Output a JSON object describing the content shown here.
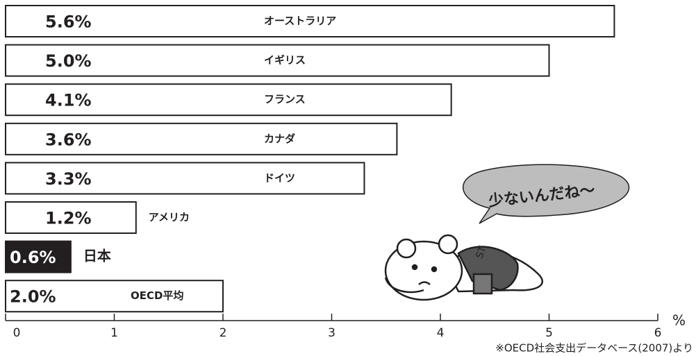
{
  "chart_data": {
    "type": "bar",
    "orientation": "horizontal",
    "categories": [
      "オーストラリア",
      "イギリス",
      "フランス",
      "カナダ",
      "ドイツ",
      "アメリカ",
      "日本",
      "OECD平均"
    ],
    "values": [
      5.6,
      5.0,
      4.1,
      3.6,
      3.3,
      1.2,
      0.6,
      2.0
    ],
    "value_labels": [
      "5.6%",
      "5.0%",
      "4.1%",
      "3.6%",
      "3.3%",
      "1.2%",
      "0.6%",
      "2.0%"
    ],
    "colors": [
      "#ffffff",
      "#ffffff",
      "#ffffff",
      "#ffffff",
      "#ffffff",
      "#ffffff",
      "#231f20",
      "#ffffff"
    ],
    "xlim": [
      0,
      6
    ],
    "xticks": [
      0,
      1,
      2,
      3,
      4,
      5,
      6
    ],
    "xlabel": "%",
    "annotation": "少ないんだね～",
    "source": "※OECD社会支出データベース(2007)より"
  }
}
